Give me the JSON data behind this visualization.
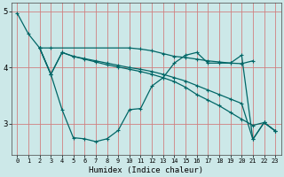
{
  "xlabel": "Humidex (Indice chaleur)",
  "bg_color": "#cce8e8",
  "line_color": "#006666",
  "grid_color_v": "#d08080",
  "grid_color_h": "#d08080",
  "xlim": [
    -0.5,
    23.5
  ],
  "ylim": [
    2.45,
    5.15
  ],
  "yticks": [
    3,
    4,
    5
  ],
  "xticks": [
    0,
    1,
    2,
    3,
    4,
    5,
    6,
    7,
    8,
    9,
    10,
    11,
    12,
    13,
    14,
    15,
    16,
    17,
    18,
    19,
    20,
    21,
    22,
    23
  ],
  "line1_x": [
    0,
    1,
    2,
    3,
    4,
    5,
    6,
    7,
    8,
    9,
    10,
    11,
    12,
    13,
    14,
    15,
    16,
    17,
    18,
    19,
    20,
    21,
    22,
    23
  ],
  "line1_y": [
    4.97,
    4.6,
    4.35,
    3.88,
    3.25,
    2.75,
    2.73,
    2.68,
    2.73,
    2.88,
    3.25,
    3.27,
    3.67,
    3.82,
    4.08,
    4.22,
    4.27,
    4.08,
    4.08,
    4.08,
    4.22,
    2.72,
    3.02,
    2.87
  ],
  "line2_x": [
    2,
    3,
    10,
    11,
    12,
    13,
    14,
    15,
    16,
    17,
    18,
    19,
    20,
    21
  ],
  "line2_y": [
    4.35,
    4.35,
    4.35,
    4.33,
    4.3,
    4.25,
    4.2,
    4.18,
    4.15,
    4.12,
    4.1,
    4.08,
    4.07,
    4.12
  ],
  "line3_x": [
    2,
    3,
    4,
    5,
    6,
    7,
    8,
    9,
    10,
    11,
    12,
    13,
    14,
    15,
    16,
    17,
    18,
    19,
    20,
    21,
    22,
    23
  ],
  "line3_y": [
    4.35,
    3.88,
    4.27,
    4.2,
    4.15,
    4.1,
    4.05,
    4.01,
    3.97,
    3.93,
    3.88,
    3.82,
    3.75,
    3.65,
    3.52,
    3.42,
    3.32,
    3.2,
    3.08,
    2.97,
    3.02,
    2.87
  ],
  "line4_x": [
    2,
    3,
    4,
    5,
    6,
    7,
    8,
    9,
    10,
    11,
    12,
    13,
    14,
    15,
    16,
    17,
    18,
    19,
    20,
    21,
    22,
    23
  ],
  "line4_y": [
    4.35,
    3.88,
    4.27,
    4.2,
    4.16,
    4.12,
    4.08,
    4.04,
    4.0,
    3.97,
    3.93,
    3.88,
    3.82,
    3.76,
    3.68,
    3.6,
    3.52,
    3.44,
    3.36,
    2.72,
    3.02,
    2.87
  ]
}
